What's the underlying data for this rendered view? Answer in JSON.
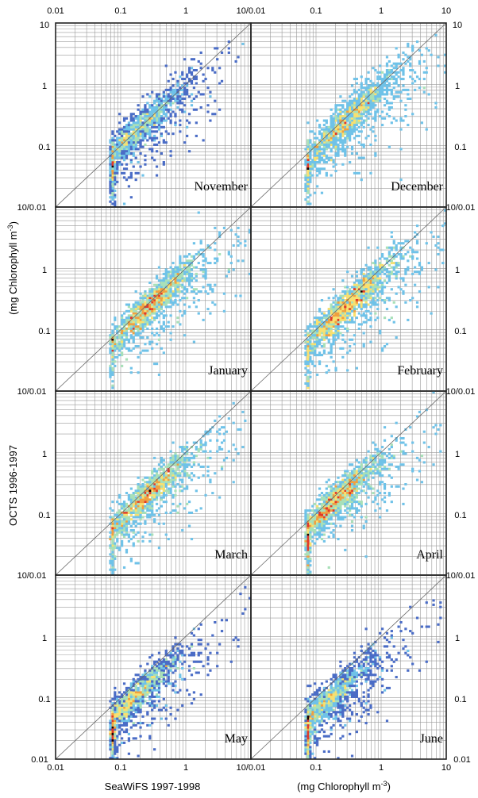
{
  "figure": {
    "xlabel": "SeaWiFS 1997-1998",
    "xlabel_units": "(mg Chlorophyll m",
    "units_exponent": "-3",
    "units_close": ")",
    "ylabel": "OCTS 1996-1997",
    "ylabel_units": "(mg Chlorophyll m"
  },
  "colors": {
    "low_density": "#4a6cc6",
    "mid_low": "#6fc2e8",
    "mid": "#a8e0b8",
    "mid_high": "#f8e070",
    "high": "#f0a040",
    "very_high": "#e03a2a",
    "max": "#1a0000",
    "grid": "#9a9a9a",
    "frame": "#222222",
    "identity_line": "#666666"
  },
  "chart_data": {
    "type": "heatmap",
    "scale": "log",
    "xlim": [
      0.01,
      10
    ],
    "ylim": [
      0.01,
      10
    ],
    "x_ticks": [
      "0.01",
      "0.1",
      "1",
      "10"
    ],
    "y_ticks": [
      "0.01",
      "0.1",
      "1",
      "10"
    ],
    "panel_seam_ticks": [
      "10/0.01"
    ],
    "reference_line": "1:1",
    "panels": [
      {
        "month": "November",
        "center_log": [
          -0.78,
          -0.78
        ],
        "spread": 0.32,
        "count": 1500
      },
      {
        "month": "December",
        "center_log": [
          -0.55,
          -0.6
        ],
        "spread": 0.34,
        "count": 1600
      },
      {
        "month": "January",
        "center_log": [
          -0.55,
          -0.6
        ],
        "spread": 0.3,
        "count": 1500
      },
      {
        "month": "February",
        "center_log": [
          -0.52,
          -0.6
        ],
        "spread": 0.32,
        "count": 1500
      },
      {
        "month": "March",
        "center_log": [
          -0.62,
          -0.72
        ],
        "spread": 0.3,
        "count": 1400
      },
      {
        "month": "April",
        "center_log": [
          -0.72,
          -0.8
        ],
        "spread": 0.3,
        "count": 1500
      },
      {
        "month": "May",
        "center_log": [
          -0.85,
          -1.05
        ],
        "spread": 0.3,
        "count": 1500
      },
      {
        "month": "June",
        "center_log": [
          -0.88,
          -1.1
        ],
        "spread": 0.3,
        "count": 1600
      }
    ]
  }
}
